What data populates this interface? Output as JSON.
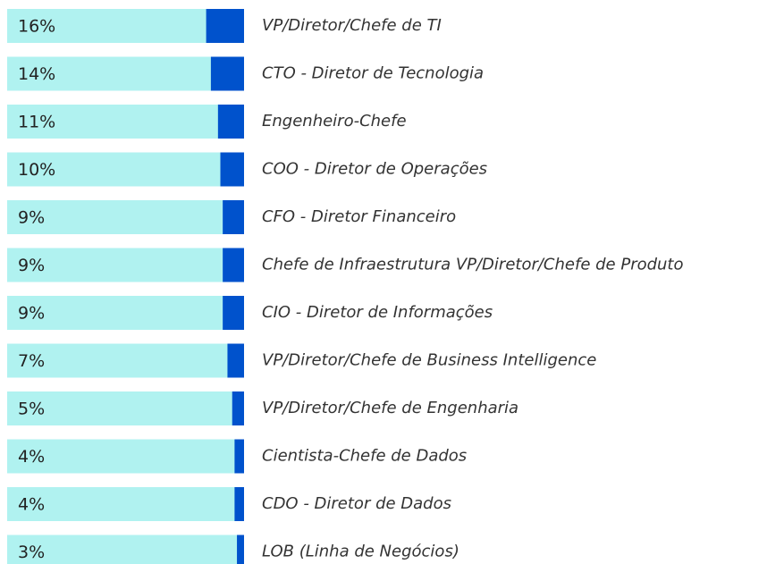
{
  "chart_data": {
    "type": "bar",
    "orientation": "horizontal",
    "categories": [
      "VP/Diretor/Chefe de TI",
      "CTO - Diretor de Tecnologia",
      "Engenheiro-Chefe",
      "COO - Diretor de Operações",
      "CFO - Diretor Financeiro",
      "Chefe de Infraestrutura VP/Diretor/Chefe de Produto",
      "CIO - Diretor de Informações",
      "VP/Diretor/Chefe de Business Intelligence",
      "VP/Diretor/Chefe de Engenharia",
      "Cientista-Chefe de Dados",
      "CDO - Diretor de Dados",
      "LOB (Linha de Negócios)"
    ],
    "values": [
      16,
      14,
      11,
      10,
      9,
      9,
      9,
      7,
      5,
      4,
      4,
      3
    ],
    "value_labels": [
      "16%",
      "14%",
      "11%",
      "10%",
      "9%",
      "9%",
      "9%",
      "7%",
      "5%",
      "4%",
      "4%",
      "3%"
    ],
    "xlim": [
      0,
      100
    ],
    "color": "#0052cc",
    "background_color": "#b0f2f0"
  }
}
